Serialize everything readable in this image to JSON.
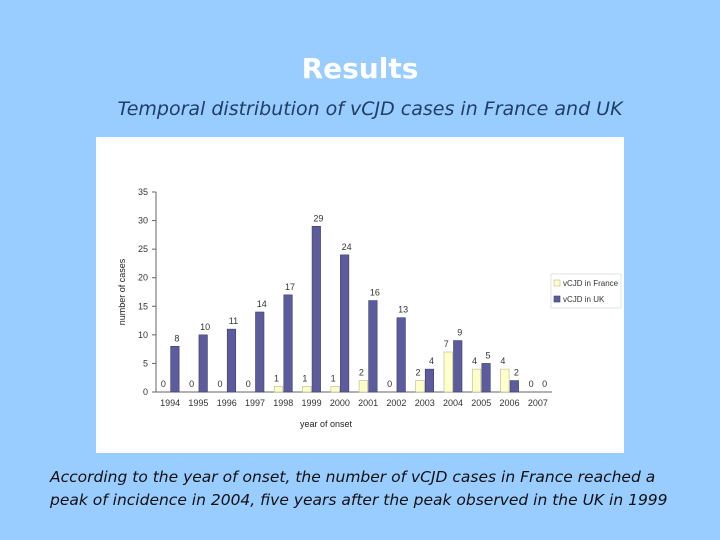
{
  "slide": {
    "title": "Results",
    "subtitle": "Temporal distribution of vCJD cases in France and UK",
    "caption": "According to the year of onset, the number of vCJD cases in France reached a peak of incidence in 2004, five years after the peak observed in the UK in 1999"
  },
  "chart_data": {
    "type": "bar",
    "xlabel": "year of onset",
    "ylabel": "number of cases",
    "ylim": [
      0,
      35
    ],
    "yticks": [
      0,
      5,
      10,
      15,
      20,
      25,
      30,
      35
    ],
    "categories": [
      "1994",
      "1995",
      "1996",
      "1997",
      "1998",
      "1999",
      "2000",
      "2001",
      "2002",
      "2003",
      "2004",
      "2005",
      "2006",
      "2007"
    ],
    "series": [
      {
        "name": "vCJD in France",
        "color": "#ffffcc",
        "stroke": "#b8b88a",
        "values": [
          0,
          0,
          0,
          0,
          1,
          1,
          1,
          2,
          0,
          2,
          7,
          4,
          4,
          0
        ]
      },
      {
        "name": "vCJD in UK",
        "color": "#5c5c9c",
        "stroke": "#3e3e70",
        "values": [
          8,
          10,
          11,
          14,
          17,
          29,
          24,
          16,
          13,
          4,
          9,
          5,
          2,
          0
        ]
      }
    ],
    "grid": false,
    "legend": "right"
  }
}
